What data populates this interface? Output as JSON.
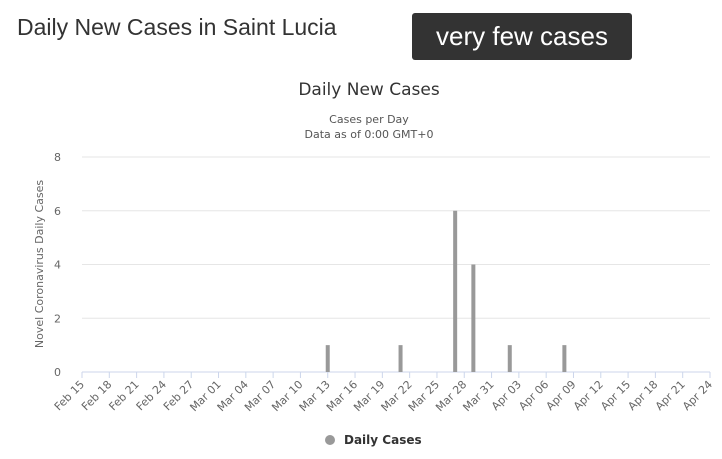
{
  "page": {
    "heading": "Daily New Cases in Saint Lucia",
    "badge": "very few cases"
  },
  "colors": {
    "bar": "#999999",
    "grid": "#e6e6e6",
    "text": "#333333",
    "axis_text": "#666666",
    "badge_bg": "#333333"
  },
  "chart_data": {
    "type": "bar",
    "title": "Daily New Cases",
    "subtitle_line1": "Cases per Day",
    "subtitle_line2": "Data as of 0:00 GMT+0",
    "ylabel": "Novel Coronavirus Daily Cases",
    "xlabel": "",
    "ylim": [
      0,
      8
    ],
    "yticks": [
      0,
      2,
      4,
      6,
      8
    ],
    "grid": true,
    "legend_position": "bottom-center",
    "x_tick_labels": [
      "Feb 15",
      "Feb 18",
      "Feb 21",
      "Feb 24",
      "Feb 27",
      "Mar 01",
      "Mar 04",
      "Mar 07",
      "Mar 10",
      "Mar 13",
      "Mar 16",
      "Mar 19",
      "Mar 22",
      "Mar 25",
      "Mar 28",
      "Mar 31",
      "Apr 03",
      "Apr 06",
      "Apr 09",
      "Apr 12",
      "Apr 15",
      "Apr 18",
      "Apr 21",
      "Apr 24"
    ],
    "series": [
      {
        "name": "Daily Cases",
        "points": [
          {
            "date": "Mar 13",
            "value": 1
          },
          {
            "date": "Mar 21",
            "value": 1
          },
          {
            "date": "Mar 27",
            "value": 6
          },
          {
            "date": "Mar 29",
            "value": 4
          },
          {
            "date": "Apr 02",
            "value": 1
          },
          {
            "date": "Apr 08",
            "value": 1
          }
        ]
      }
    ]
  }
}
